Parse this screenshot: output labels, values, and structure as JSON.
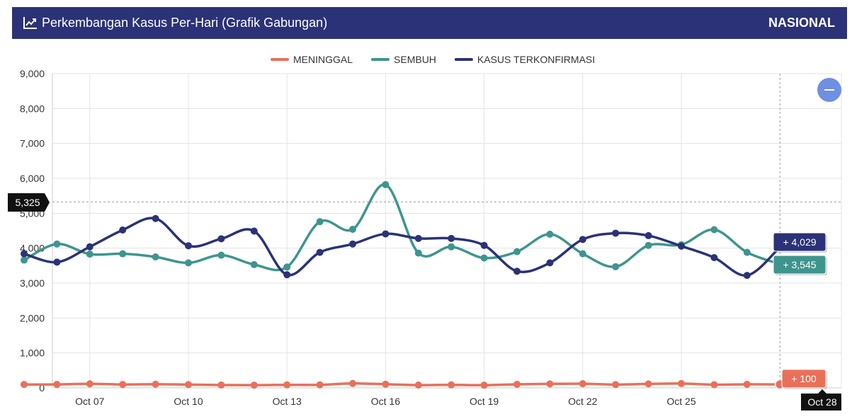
{
  "header": {
    "title": "Perkembangan Kasus Per-Hari (Grafik Gabungan)",
    "icon": "line-chart-icon",
    "region": "NASIONAL"
  },
  "zoom_button": {
    "icon": "minus-icon",
    "color": "#6f8fe3"
  },
  "chart_data": {
    "type": "line",
    "x": [
      "Oct 05",
      "Oct 06",
      "Oct 07",
      "Oct 08",
      "Oct 09",
      "Oct 10",
      "Oct 11",
      "Oct 12",
      "Oct 13",
      "Oct 14",
      "Oct 15",
      "Oct 16",
      "Oct 17",
      "Oct 18",
      "Oct 19",
      "Oct 20",
      "Oct 21",
      "Oct 22",
      "Oct 23",
      "Oct 24",
      "Oct 25",
      "Oct 26",
      "Oct 27",
      "Oct 28"
    ],
    "x_tick_labels": [
      "Oct 07",
      "Oct 10",
      "Oct 13",
      "Oct 16",
      "Oct 19",
      "Oct 22",
      "Oct 25"
    ],
    "ylim": [
      0,
      9000
    ],
    "y_ticks": [
      0,
      1000,
      2000,
      3000,
      4000,
      5000,
      6000,
      7000,
      8000,
      9000
    ],
    "y_tick_labels": [
      "0",
      "1,000",
      "2,000",
      "3,000",
      "4,000",
      "5,000",
      "6,000",
      "7,000",
      "8,000",
      "9,000"
    ],
    "grid": true,
    "legend_position": "top-center",
    "series": [
      {
        "name": "MENINGGAL",
        "color": "#e8705a",
        "values": [
          98,
          98,
          116,
          97,
          104,
          94,
          82,
          78,
          87,
          87,
          126,
          105,
          80,
          86,
          78,
          102,
          114,
          118,
          94,
          114,
          123,
          92,
          102,
          100
        ]
      },
      {
        "name": "SEMBUH",
        "color": "#3e958e",
        "values": [
          3660,
          4120,
          3830,
          3840,
          3750,
          3580,
          3800,
          3530,
          3460,
          4760,
          4540,
          5820,
          3860,
          4040,
          3720,
          3900,
          4400,
          3840,
          3470,
          4080,
          4100,
          4530,
          3880,
          3545
        ]
      },
      {
        "name": "KASUS TERKONFIRMASI",
        "color": "#2b3277",
        "values": [
          3840,
          3600,
          4040,
          4520,
          4850,
          4070,
          4270,
          4490,
          3240,
          3880,
          4120,
          4410,
          4280,
          4280,
          4080,
          3340,
          3580,
          4250,
          4430,
          4360,
          4060,
          3730,
          3220,
          4029
        ]
      }
    ],
    "crosshair": {
      "y_value_label": "5,325",
      "x_label": "Oct 28"
    },
    "tooltips": [
      {
        "series": "KASUS TERKONFIRMASI",
        "text": "+ 4,029"
      },
      {
        "series": "SEMBUH",
        "text": "+ 3,545"
      },
      {
        "series": "MENINGGAL",
        "text": "+ 100"
      }
    ]
  }
}
